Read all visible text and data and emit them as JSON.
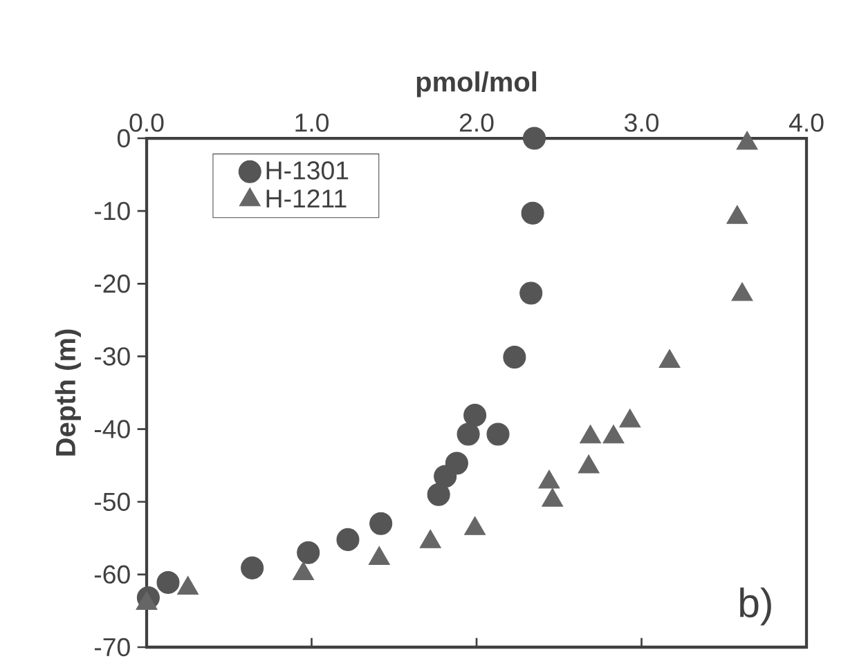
{
  "chart_data": {
    "type": "scatter",
    "xlabel": "pmol/mol",
    "ylabel": "Depth (m)",
    "xlim": [
      0,
      4
    ],
    "ylim": [
      -70,
      0
    ],
    "xticks": [
      {
        "value": 0,
        "label": "0.0"
      },
      {
        "value": 1,
        "label": "1.0"
      },
      {
        "value": 2,
        "label": "2.0"
      },
      {
        "value": 3,
        "label": "3.0"
      },
      {
        "value": 4,
        "label": "4.0"
      }
    ],
    "yticks": [
      0,
      -10,
      -20,
      -30,
      -40,
      -50,
      -60,
      -70
    ],
    "legend": "top left",
    "grid": false,
    "annotations": [
      "b)"
    ],
    "series": [
      {
        "name": "H-1301",
        "color": "#555555",
        "marker": "circle",
        "x": [
          2.35,
          2.34,
          2.33,
          2.23,
          1.99,
          1.95,
          2.13,
          1.88,
          1.81,
          1.77,
          1.42,
          1.22,
          0.98,
          0.64,
          0.13,
          0.01
        ],
        "values": [
          0,
          -10.3,
          -21.3,
          -30.1,
          -38.1,
          -40.7,
          -40.7,
          -44.7,
          -46.5,
          -49,
          -53,
          -55.2,
          -57,
          -59.1,
          -61.1,
          -63.2
        ]
      },
      {
        "name": "H-1211",
        "color": "#666666",
        "marker": "triangle",
        "x": [
          3.64,
          3.58,
          3.61,
          3.17,
          2.93,
          2.83,
          2.69,
          2.68,
          2.44,
          2.46,
          1.99,
          1.72,
          1.41,
          0.95,
          0.25,
          0.0
        ],
        "values": [
          -0.7,
          -10.9,
          -21.5,
          -30.7,
          -38.9,
          -41.1,
          -41.1,
          -45.2,
          -47.3,
          -49.8,
          -53.7,
          -55.5,
          -57.8,
          -59.9,
          -61.9,
          -64
        ]
      }
    ]
  }
}
